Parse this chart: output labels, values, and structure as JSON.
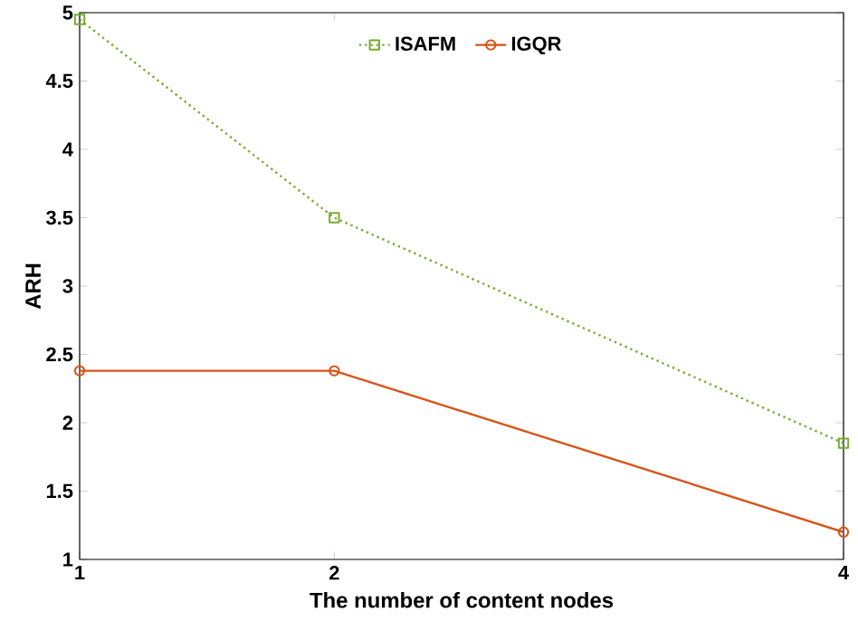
{
  "chart_data": {
    "type": "line",
    "xlabel": "The number of content nodes",
    "ylabel": "ARH",
    "x": [
      1,
      2,
      4
    ],
    "series": [
      {
        "name": "ISAFM",
        "color": "#77ac30",
        "values": [
          4.95,
          3.5,
          1.85
        ],
        "marker": "square",
        "line_style": "dotted"
      },
      {
        "name": "IGQR",
        "color": "#d95319",
        "values": [
          2.38,
          2.38,
          1.2
        ],
        "marker": "circle",
        "line_style": "solid"
      }
    ],
    "xlim": [
      1,
      4
    ],
    "xticks": [
      1,
      2,
      4
    ],
    "ylim": [
      1,
      5
    ],
    "yticks": [
      1,
      1.5,
      2,
      2.5,
      3,
      3.5,
      4,
      4.5,
      5
    ],
    "grid": false,
    "legend": "top"
  }
}
